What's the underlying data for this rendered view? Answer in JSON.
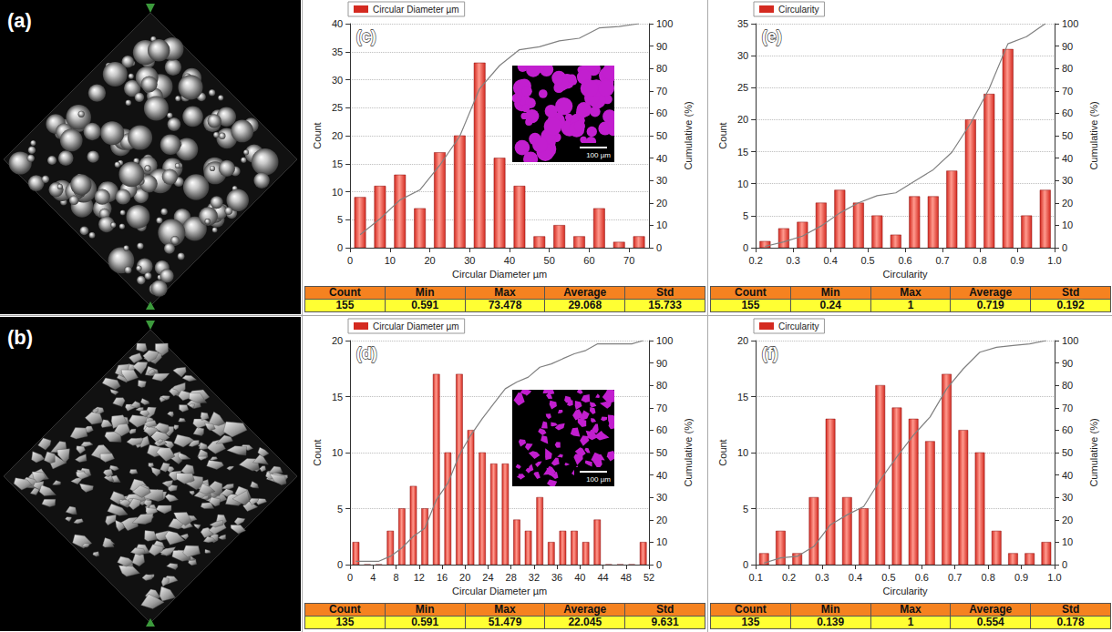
{
  "panels": [
    {
      "label": "(a)"
    },
    {
      "label": "(b)"
    }
  ],
  "chart_data": [
    {
      "type": "histogram",
      "panel": "(c)",
      "x_label": "Circular Diameter µm",
      "y_label": "Count",
      "y2_label": "Cumulative (%)",
      "bins": [
        0,
        5,
        10,
        15,
        20,
        25,
        30,
        35,
        40,
        45,
        50,
        55,
        60,
        65,
        70,
        75
      ],
      "series": [
        {
          "name": "Circular Diameter µm",
          "type": "bar",
          "color": "#d42a20",
          "values": [
            9,
            11,
            13,
            7,
            17,
            20,
            33,
            16,
            11,
            2,
            4,
            2,
            7,
            1,
            2
          ]
        },
        {
          "type": "line",
          "axis": "y2",
          "color": "#808080",
          "x": [
            2.5,
            7.5,
            12.5,
            17.5,
            22.5,
            27.5,
            32.5,
            37.5,
            42.5,
            47.5,
            52.5,
            57.5,
            62.5,
            67.5,
            72.5
          ],
          "values": [
            5.8,
            12.9,
            21.3,
            25.8,
            36.8,
            49.7,
            71.0,
            81.3,
            88.4,
            89.7,
            92.3,
            93.5,
            98.1,
            98.7,
            100
          ]
        }
      ],
      "xlim": [
        0,
        75
      ],
      "xticks": [
        0,
        10,
        20,
        30,
        40,
        50,
        60,
        70
      ],
      "ylim": [
        0,
        40
      ],
      "yticks": [
        0,
        5,
        10,
        15,
        20,
        25,
        30,
        35,
        40
      ],
      "y2lim": [
        0,
        100
      ],
      "y2ticks": [
        0,
        10,
        20,
        30,
        40,
        50,
        60,
        70,
        80,
        90,
        100
      ],
      "grid": true,
      "legend": "top-left",
      "inset": {
        "scale_label": "100 µm"
      },
      "table": {
        "header": [
          "Count",
          "Min",
          "Max",
          "Average",
          "Std"
        ],
        "row": [
          "155",
          "0.591",
          "73.478",
          "29.068",
          "15.733"
        ]
      }
    },
    {
      "type": "histogram",
      "panel": "(d)",
      "x_label": "Circular Diameter µm",
      "y_label": "Count",
      "y2_label": "Cumulative (%)",
      "bins": [
        0,
        2,
        4,
        6,
        8,
        10,
        12,
        14,
        16,
        18,
        20,
        22,
        24,
        26,
        28,
        30,
        32,
        34,
        36,
        38,
        40,
        42,
        44,
        46,
        48,
        50,
        52
      ],
      "series": [
        {
          "name": "Circular Diameter µm",
          "type": "bar",
          "color": "#d42a20",
          "values": [
            2,
            0,
            0,
            3,
            5,
            7,
            5,
            17,
            10,
            17,
            12,
            10,
            9,
            9,
            4,
            3,
            6,
            2,
            3,
            3,
            2,
            4,
            0,
            0,
            0,
            2
          ]
        },
        {
          "type": "line",
          "axis": "y2",
          "color": "#808080",
          "x": [
            1,
            3,
            5,
            7,
            9,
            11,
            13,
            15,
            17,
            19,
            21,
            23,
            25,
            27,
            29,
            31,
            33,
            35,
            37,
            39,
            41,
            43,
            45,
            47,
            49,
            51
          ],
          "values": [
            1.5,
            1.5,
            1.5,
            3.7,
            7.4,
            12.6,
            16.3,
            28.9,
            36.3,
            48.9,
            57.8,
            65.2,
            71.9,
            78.5,
            81.5,
            83.7,
            88.1,
            89.6,
            91.9,
            94.1,
            95.6,
            98.5,
            98.5,
            98.5,
            98.5,
            100
          ]
        }
      ],
      "xlim": [
        0,
        52
      ],
      "xticks": [
        0,
        4,
        8,
        12,
        16,
        20,
        24,
        28,
        32,
        36,
        40,
        44,
        48,
        52
      ],
      "ylim": [
        0,
        20
      ],
      "yticks": [
        0,
        5,
        10,
        15,
        20
      ],
      "y2lim": [
        0,
        100
      ],
      "y2ticks": [
        0,
        10,
        20,
        30,
        40,
        50,
        60,
        70,
        80,
        90,
        100
      ],
      "grid": true,
      "legend": "top-left",
      "inset": {
        "scale_label": "100 µm"
      },
      "table": {
        "header": [
          "Count",
          "Min",
          "Max",
          "Average",
          "Std"
        ],
        "row": [
          "135",
          "0.591",
          "51.479",
          "22.045",
          "9.631"
        ]
      }
    },
    {
      "type": "histogram",
      "panel": "(e)",
      "x_label": "Circularity",
      "y_label": "Count",
      "y2_label": "Cumulative (%)",
      "bins": [
        0.2,
        0.25,
        0.3,
        0.35,
        0.4,
        0.45,
        0.5,
        0.55,
        0.6,
        0.65,
        0.7,
        0.75,
        0.8,
        0.85,
        0.9,
        0.95,
        1.0
      ],
      "series": [
        {
          "name": "Circularity",
          "type": "bar",
          "color": "#d42a20",
          "values": [
            1,
            3,
            4,
            7,
            9,
            7,
            5,
            2,
            8,
            8,
            12,
            20,
            24,
            31,
            5,
            9
          ]
        },
        {
          "type": "line",
          "axis": "y2",
          "color": "#808080",
          "x": [
            0.225,
            0.275,
            0.325,
            0.375,
            0.425,
            0.475,
            0.525,
            0.575,
            0.625,
            0.675,
            0.725,
            0.775,
            0.825,
            0.875,
            0.925,
            0.975
          ],
          "values": [
            0.6,
            2.6,
            5.2,
            9.7,
            15.5,
            20.0,
            23.2,
            24.5,
            29.7,
            34.8,
            42.6,
            55.5,
            71.0,
            91.0,
            94.2,
            100
          ]
        }
      ],
      "xlim": [
        0.2,
        1.0
      ],
      "xticks": [
        0.2,
        0.3,
        0.4,
        0.5,
        0.6,
        0.7,
        0.8,
        0.9,
        {
          "value": 1.0,
          "label": "1.0"
        }
      ],
      "ylim": [
        0,
        35
      ],
      "yticks": [
        0,
        5,
        10,
        15,
        20,
        25,
        30,
        35
      ],
      "y2lim": [
        0,
        100
      ],
      "y2ticks": [
        0,
        10,
        20,
        30,
        40,
        50,
        60,
        70,
        80,
        90,
        100
      ],
      "grid": true,
      "legend": "top-left",
      "table": {
        "header": [
          "Count",
          "Min",
          "Max",
          "Average",
          "Std"
        ],
        "row": [
          "155",
          "0.24",
          "1",
          "0.719",
          "0.192"
        ]
      }
    },
    {
      "type": "histogram",
      "panel": "(f)",
      "x_label": "Circularity",
      "y_label": "Count",
      "y2_label": "Cumulative (%)",
      "bins": [
        0.1,
        0.15,
        0.2,
        0.25,
        0.3,
        0.35,
        0.4,
        0.45,
        0.5,
        0.55,
        0.6,
        0.65,
        0.7,
        0.75,
        0.8,
        0.85,
        0.9,
        0.95,
        1.0
      ],
      "series": [
        {
          "name": "Circularity",
          "type": "bar",
          "color": "#d42a20",
          "values": [
            1,
            3,
            1,
            6,
            13,
            6,
            5,
            16,
            14,
            13,
            11,
            17,
            12,
            10,
            3,
            1,
            1,
            2
          ]
        },
        {
          "type": "line",
          "axis": "y2",
          "color": "#808080",
          "x": [
            0.125,
            0.175,
            0.225,
            0.275,
            0.325,
            0.375,
            0.425,
            0.475,
            0.525,
            0.575,
            0.625,
            0.675,
            0.725,
            0.775,
            0.825,
            0.875,
            0.925,
            0.975
          ],
          "values": [
            0.7,
            3.0,
            3.7,
            8.1,
            17.8,
            22.2,
            25.9,
            37.8,
            48.1,
            57.8,
            65.9,
            78.5,
            87.4,
            94.8,
            97.0,
            97.8,
            98.5,
            100
          ]
        }
      ],
      "xlim": [
        0.1,
        1.0
      ],
      "xticks": [
        0.1,
        0.2,
        0.3,
        0.4,
        0.5,
        0.6,
        0.7,
        0.8,
        0.9,
        {
          "value": 1.0,
          "label": "1.0"
        }
      ],
      "ylim": [
        0,
        20
      ],
      "yticks": [
        0,
        5,
        10,
        15,
        20
      ],
      "y2lim": [
        0,
        100
      ],
      "y2ticks": [
        0,
        10,
        20,
        30,
        40,
        50,
        60,
        70,
        80,
        90,
        100
      ],
      "grid": true,
      "legend": "top-left",
      "table": {
        "header": [
          "Count",
          "Min",
          "Max",
          "Average",
          "Std"
        ],
        "row": [
          "135",
          "0.139",
          "1",
          "0.554",
          "0.178"
        ]
      }
    }
  ]
}
